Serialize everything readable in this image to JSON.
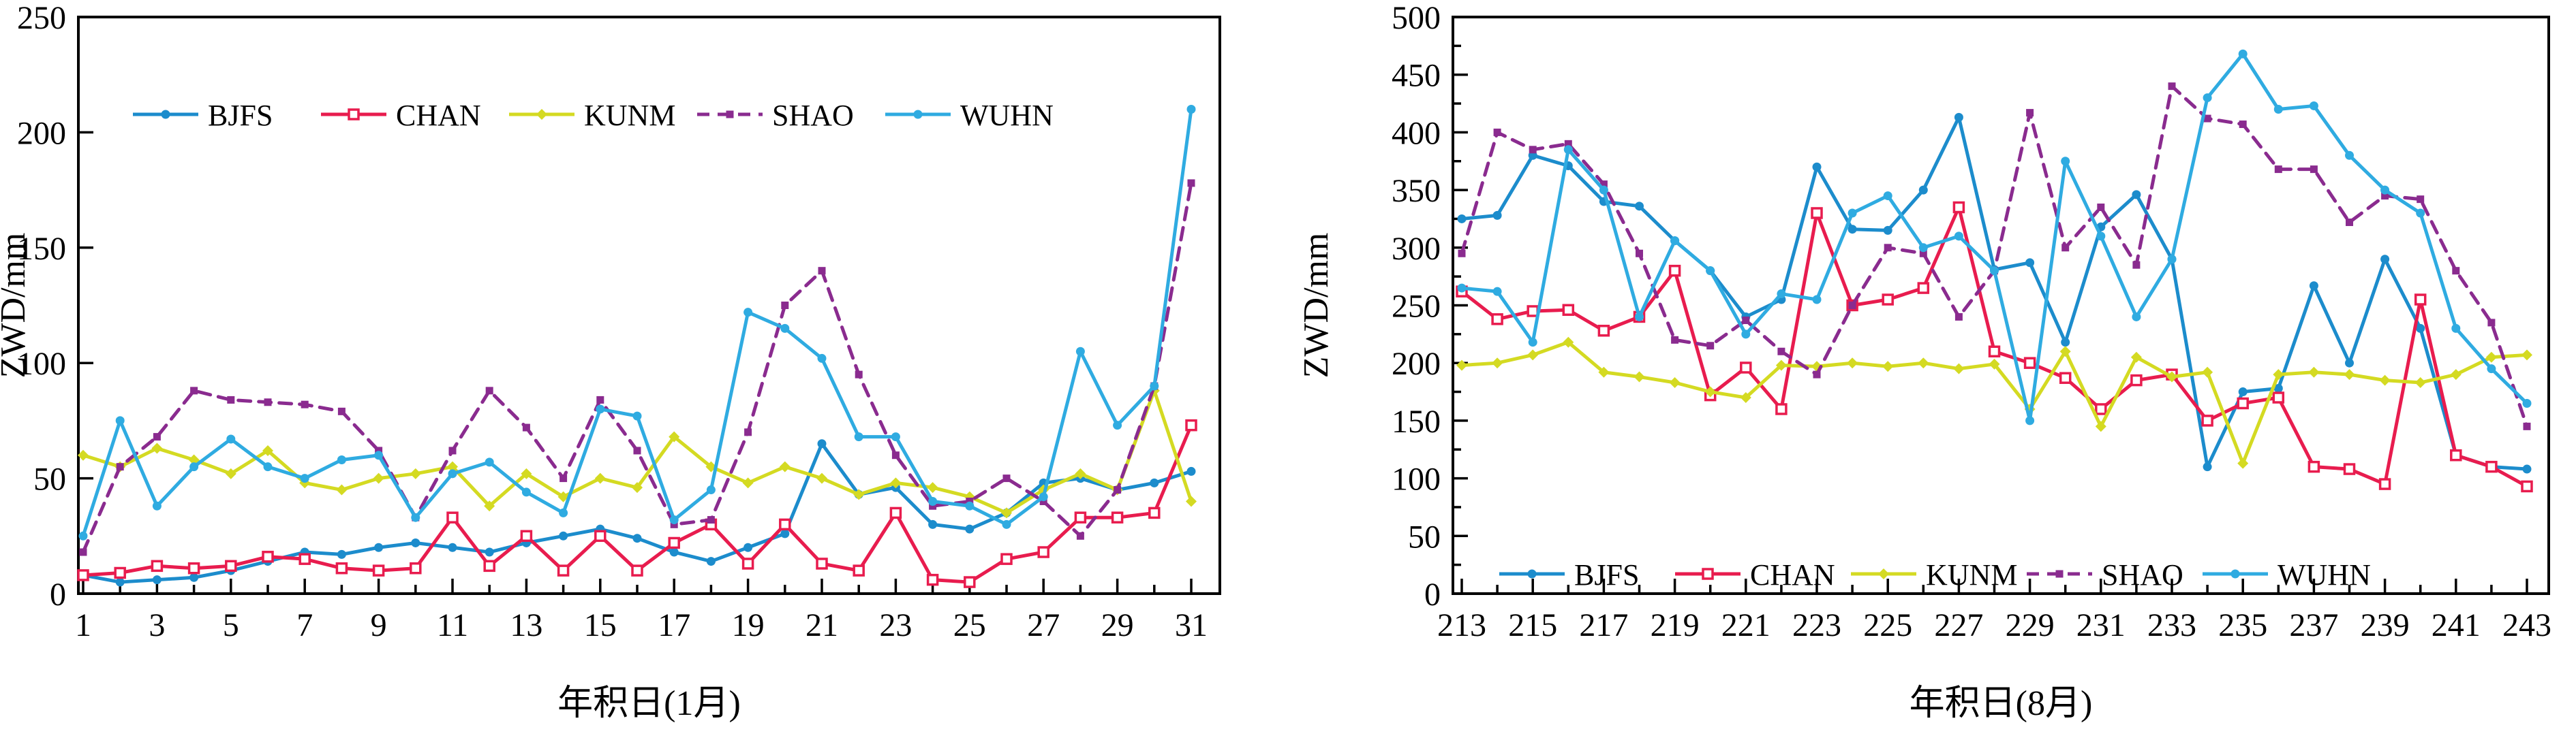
{
  "figure_title": "",
  "colors": {
    "BJFS": "#1c8ccc",
    "CHAN": "#e81c4e",
    "KUNM": "#d4da22",
    "SHAO": "#8a2b8f",
    "WUHN": "#2fabe1",
    "axis": "#000000",
    "background": "#ffffff"
  },
  "chart_data": [
    {
      "name": "chart-january",
      "type": "line",
      "title": "",
      "xlabel": "年积日(1月)",
      "ylabel": "ZWD/mm",
      "ylim": [
        0,
        250
      ],
      "ytick_step": 50,
      "ytick_minor_step": 50,
      "ytick_labels": [
        0,
        50,
        100,
        150,
        200,
        250
      ],
      "xtick_labels": [
        1,
        3,
        5,
        7,
        9,
        11,
        13,
        15,
        17,
        19,
        21,
        23,
        25,
        27,
        29,
        31
      ],
      "x": [
        1,
        2,
        3,
        4,
        5,
        6,
        7,
        8,
        9,
        10,
        11,
        12,
        13,
        14,
        15,
        16,
        17,
        18,
        19,
        20,
        21,
        22,
        23,
        24,
        25,
        26,
        27,
        28,
        29,
        30,
        31
      ],
      "grid": false,
      "legend_position": "top-inside",
      "series": [
        {
          "name": "BJFS",
          "marker": "circle",
          "dashed": false,
          "values": [
            8,
            5,
            6,
            7,
            10,
            14,
            18,
            17,
            20,
            22,
            20,
            18,
            22,
            25,
            28,
            24,
            18,
            14,
            20,
            26,
            65,
            43,
            46,
            30,
            28,
            35,
            48,
            50,
            45,
            48,
            53
          ]
        },
        {
          "name": "CHAN",
          "marker": "open-square",
          "dashed": false,
          "values": [
            8,
            9,
            12,
            11,
            12,
            16,
            15,
            11,
            10,
            11,
            33,
            12,
            25,
            10,
            25,
            10,
            22,
            30,
            13,
            30,
            13,
            10,
            35,
            6,
            5,
            15,
            18,
            33,
            33,
            35,
            73
          ]
        },
        {
          "name": "KUNM",
          "marker": "diamond",
          "dashed": false,
          "values": [
            60,
            55,
            63,
            58,
            52,
            62,
            48,
            45,
            50,
            52,
            55,
            38,
            52,
            42,
            50,
            46,
            68,
            55,
            48,
            55,
            50,
            43,
            48,
            46,
            42,
            35,
            45,
            52,
            45,
            88,
            40
          ]
        },
        {
          "name": "SHAO",
          "marker": "square",
          "dashed": true,
          "values": [
            18,
            55,
            68,
            88,
            84,
            83,
            82,
            79,
            62,
            33,
            62,
            88,
            72,
            50,
            84,
            62,
            30,
            32,
            70,
            125,
            140,
            95,
            60,
            38,
            40,
            50,
            40,
            25,
            45,
            90,
            178
          ]
        },
        {
          "name": "WUHN",
          "marker": "circle",
          "dashed": false,
          "values": [
            25,
            75,
            38,
            55,
            67,
            55,
            50,
            58,
            60,
            33,
            52,
            57,
            44,
            35,
            80,
            77,
            32,
            45,
            122,
            115,
            102,
            68,
            68,
            40,
            38,
            30,
            42,
            105,
            73,
            90,
            210
          ]
        }
      ]
    },
    {
      "name": "chart-august",
      "type": "line",
      "title": "",
      "xlabel": "年积日(8月)",
      "ylabel": "ZWD/mm",
      "ylim": [
        0,
        500
      ],
      "ytick_step": 50,
      "ytick_minor_step": 25,
      "ytick_labels": [
        0,
        50,
        100,
        150,
        200,
        250,
        300,
        350,
        400,
        450,
        500
      ],
      "xtick_labels": [
        213,
        215,
        217,
        219,
        221,
        223,
        225,
        227,
        229,
        231,
        233,
        235,
        237,
        239,
        241,
        243
      ],
      "x": [
        213,
        214,
        215,
        216,
        217,
        218,
        219,
        220,
        221,
        222,
        223,
        224,
        225,
        226,
        227,
        228,
        229,
        230,
        231,
        232,
        233,
        234,
        235,
        236,
        237,
        238,
        239,
        240,
        241,
        242,
        243
      ],
      "grid": false,
      "legend_position": "bottom-inside",
      "series": [
        {
          "name": "BJFS",
          "marker": "circle",
          "dashed": false,
          "values": [
            325,
            328,
            380,
            371,
            340,
            336,
            306,
            280,
            240,
            255,
            370,
            316,
            315,
            350,
            413,
            281,
            287,
            218,
            318,
            346,
            290,
            110,
            175,
            178,
            267,
            200,
            290,
            230,
            120,
            110,
            108
          ]
        },
        {
          "name": "CHAN",
          "marker": "open-square",
          "dashed": false,
          "values": [
            262,
            238,
            245,
            246,
            228,
            240,
            280,
            172,
            196,
            160,
            330,
            250,
            255,
            265,
            335,
            210,
            200,
            187,
            160,
            185,
            190,
            150,
            165,
            170,
            110,
            108,
            95,
            255,
            120,
            110,
            93
          ]
        },
        {
          "name": "KUNM",
          "marker": "diamond",
          "dashed": false,
          "values": [
            198,
            200,
            207,
            218,
            192,
            188,
            183,
            175,
            170,
            198,
            197,
            200,
            197,
            200,
            195,
            199,
            160,
            210,
            145,
            205,
            188,
            192,
            113,
            190,
            192,
            190,
            185,
            183,
            190,
            205,
            207
          ]
        },
        {
          "name": "SHAO",
          "marker": "square",
          "dashed": true,
          "values": [
            295,
            400,
            385,
            390,
            355,
            295,
            220,
            215,
            237,
            210,
            190,
            250,
            300,
            295,
            240,
            280,
            417,
            300,
            335,
            285,
            440,
            412,
            407,
            368,
            368,
            322,
            345,
            342,
            280,
            235,
            145
          ]
        },
        {
          "name": "WUHN",
          "marker": "circle",
          "dashed": false,
          "values": [
            265,
            262,
            218,
            385,
            350,
            240,
            306,
            280,
            225,
            260,
            255,
            330,
            345,
            300,
            310,
            280,
            150,
            375,
            310,
            240,
            290,
            430,
            468,
            420,
            423,
            380,
            350,
            330,
            230,
            195,
            165
          ]
        }
      ]
    }
  ]
}
